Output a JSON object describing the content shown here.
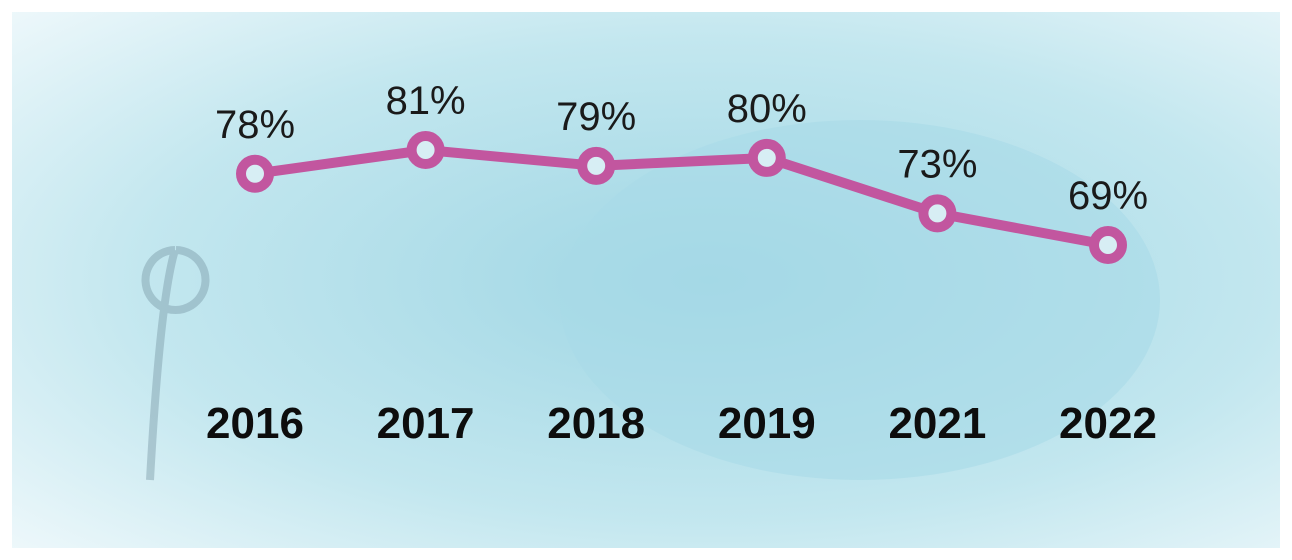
{
  "chart_data": {
    "type": "line",
    "categories": [
      "2016",
      "2017",
      "2018",
      "2019",
      "2021",
      "2022"
    ],
    "values": [
      78,
      81,
      79,
      80,
      73,
      69
    ],
    "value_labels": [
      "78%",
      "81%",
      "79%",
      "80%",
      "73%",
      "69%"
    ],
    "color": "#c2569f"
  }
}
